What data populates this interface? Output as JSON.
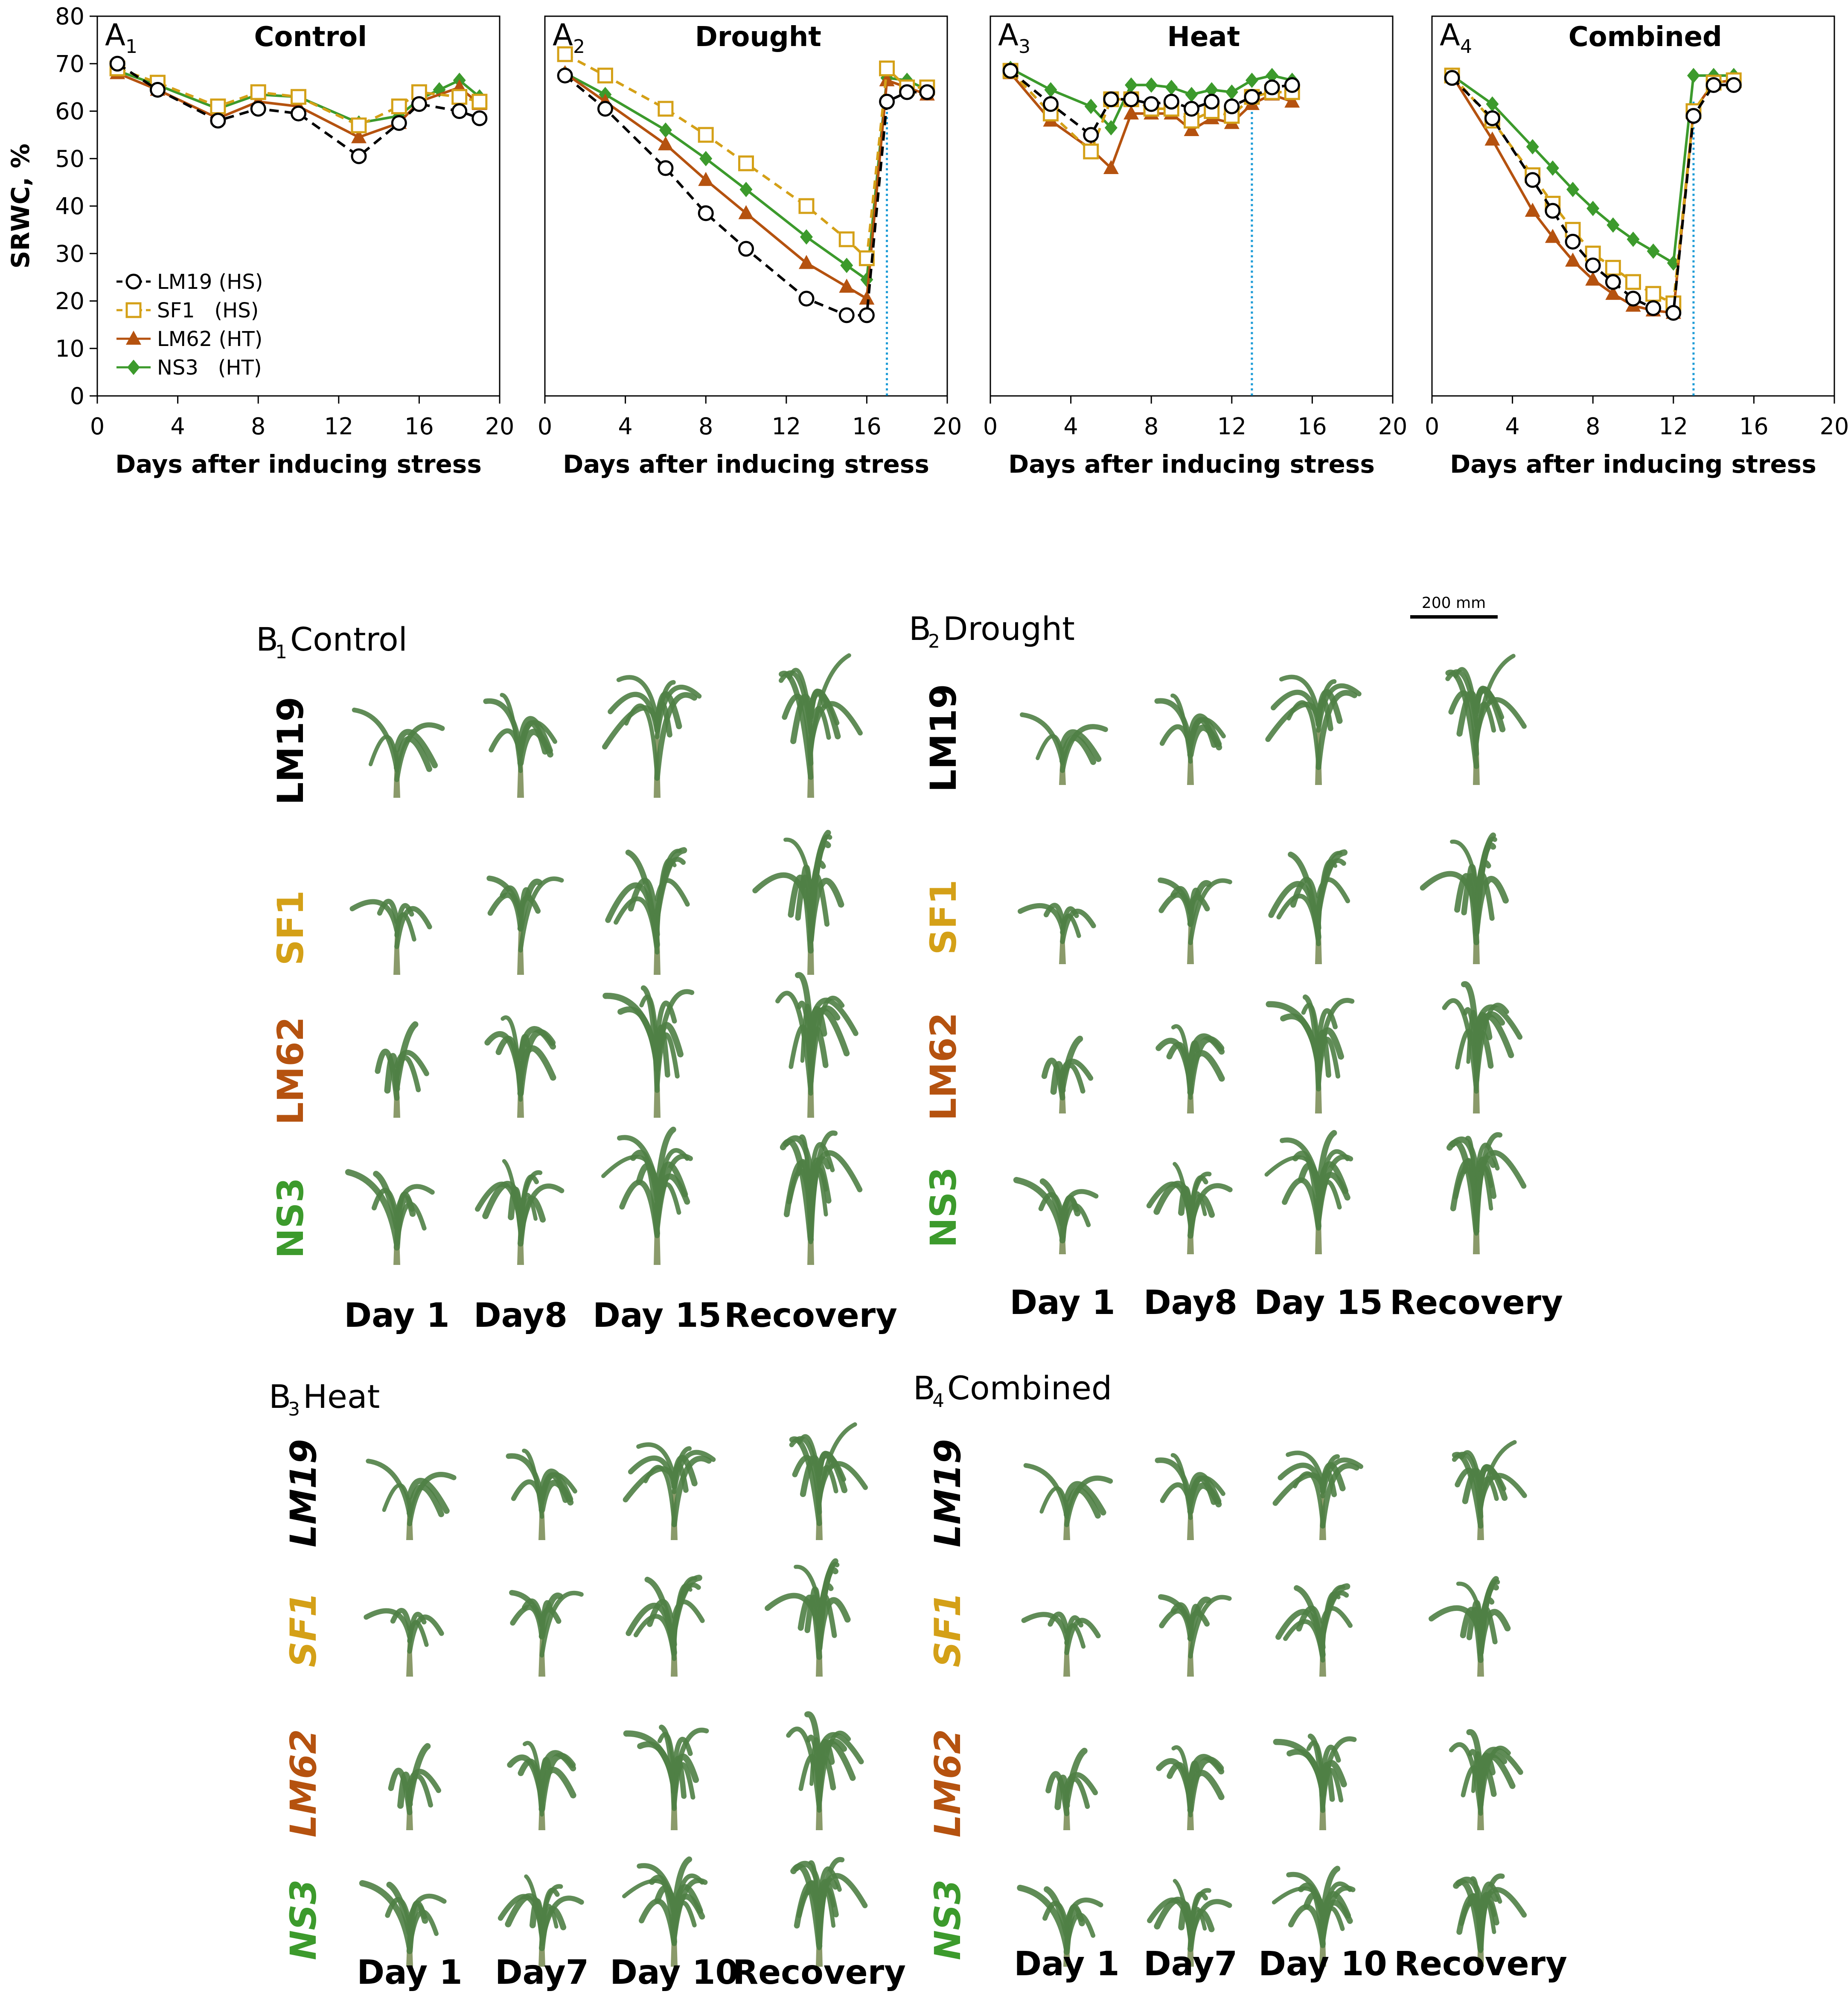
{
  "chart_data": [
    {
      "type": "line",
      "panel": "A",
      "panel_sub": "1",
      "title": "Control",
      "xlabel": "Days after inducing stress",
      "ylabel": "SRWC, %",
      "xlim": [
        0,
        20
      ],
      "ylim": [
        0,
        80
      ],
      "xticks": [
        "0",
        "4",
        "8",
        "12",
        "16",
        "20"
      ],
      "yticks": [
        "0",
        "10",
        "20",
        "30",
        "40",
        "50",
        "60",
        "70",
        "80"
      ],
      "recovery_day": null,
      "series": [
        {
          "name": "LM19 (HS)",
          "x": [
            1,
            3,
            6,
            8,
            10,
            13,
            15,
            16,
            18,
            19
          ],
          "y": [
            70,
            64.5,
            58,
            60.5,
            59.5,
            50.5,
            57.5,
            61.5,
            60,
            58.5
          ]
        },
        {
          "name": "SF1   (HS)",
          "x": [
            1,
            3,
            6,
            8,
            10,
            13,
            15,
            16,
            18,
            19
          ],
          "y": [
            69,
            66,
            61,
            64,
            63,
            57,
            61,
            64,
            63,
            62
          ]
        },
        {
          "name": "LM62 (HT)",
          "x": [
            1,
            3,
            6,
            8,
            10,
            13,
            15,
            16,
            18,
            19
          ],
          "y": [
            68,
            64.5,
            58.5,
            62,
            61,
            54.5,
            57.5,
            62,
            65,
            61.5
          ]
        },
        {
          "name": "NS3   (HT)",
          "x": [
            1,
            3,
            6,
            8,
            10,
            13,
            15,
            16,
            17,
            18,
            19
          ],
          "y": [
            68.5,
            65.5,
            60.5,
            63.5,
            63,
            57.5,
            59,
            62.5,
            64.5,
            66.5,
            63
          ]
        }
      ]
    },
    {
      "type": "line",
      "panel": "A",
      "panel_sub": "2",
      "title": "Drought",
      "xlabel": "Days after inducing stress",
      "ylabel": "",
      "xlim": [
        0,
        20
      ],
      "ylim": [
        0,
        80
      ],
      "xticks": [
        "0",
        "4",
        "8",
        "12",
        "16",
        "20"
      ],
      "yticks": [],
      "recovery_day": 17,
      "series": [
        {
          "name": "LM19 (HS)",
          "x": [
            1,
            3,
            6,
            8,
            10,
            13,
            15,
            16,
            17,
            18,
            19
          ],
          "y": [
            67.5,
            60.5,
            48,
            38.5,
            31,
            20.5,
            17,
            17,
            62,
            64,
            64
          ]
        },
        {
          "name": "SF1   (HS)",
          "x": [
            1,
            3,
            6,
            8,
            10,
            13,
            15,
            16,
            17,
            18,
            19
          ],
          "y": [
            72,
            67.5,
            60.5,
            55,
            49,
            40,
            33,
            29,
            69,
            65,
            65
          ]
        },
        {
          "name": "LM62 (HT)",
          "x": [
            1,
            3,
            6,
            8,
            10,
            13,
            15,
            16,
            17,
            18,
            19
          ],
          "y": [
            68,
            62,
            53,
            45.5,
            38.5,
            28,
            23,
            20.5,
            66.5,
            65,
            63.5
          ]
        },
        {
          "name": "NS3   (HT)",
          "x": [
            1,
            3,
            6,
            8,
            10,
            13,
            15,
            16,
            17,
            18,
            19
          ],
          "y": [
            68,
            63.5,
            56,
            50,
            43.5,
            33.5,
            27.5,
            24.5,
            67,
            66.5,
            64.5
          ]
        }
      ]
    },
    {
      "type": "line",
      "panel": "A",
      "panel_sub": "3",
      "title": "Heat",
      "xlabel": "Days after inducing stress",
      "ylabel": "",
      "xlim": [
        0,
        20
      ],
      "ylim": [
        0,
        80
      ],
      "xticks": [
        "0",
        "4",
        "8",
        "12",
        "16",
        "20"
      ],
      "yticks": [],
      "recovery_day": 13,
      "series": [
        {
          "name": "LM19 (HS)",
          "x": [
            1,
            3,
            5,
            6,
            7,
            8,
            9,
            10,
            11,
            12,
            13,
            14,
            15
          ],
          "y": [
            68.5,
            61.5,
            55,
            62.5,
            62.5,
            61.5,
            62,
            60.5,
            62,
            61,
            63,
            65,
            65.5
          ]
        },
        {
          "name": "SF1   (HS)",
          "x": [
            1,
            3,
            5,
            6,
            7,
            8,
            9,
            10,
            11,
            12,
            13,
            14,
            15
          ],
          "y": [
            68.5,
            59.5,
            51.5,
            62.5,
            62.5,
            60.5,
            60.5,
            58,
            60,
            59,
            63,
            64,
            64
          ]
        },
        {
          "name": "LM62 (HT)",
          "x": [
            1,
            3,
            5,
            6,
            7,
            8,
            9,
            10,
            11,
            12,
            13,
            14,
            15
          ],
          "y": [
            68,
            58,
            52,
            48,
            59.5,
            59.5,
            59.5,
            56,
            58.5,
            57.5,
            61.5,
            63.5,
            62
          ]
        },
        {
          "name": "NS3   (HT)",
          "x": [
            1,
            3,
            5,
            6,
            7,
            8,
            9,
            10,
            11,
            12,
            13,
            14,
            15
          ],
          "y": [
            69,
            64.5,
            61,
            56.5,
            65.5,
            65.5,
            65,
            63.5,
            64.5,
            64,
            66.5,
            67.5,
            66.5
          ]
        }
      ]
    },
    {
      "type": "line",
      "panel": "A",
      "panel_sub": "4",
      "title": "Combined",
      "xlabel": "Days after inducing stress",
      "ylabel": "",
      "xlim": [
        0,
        20
      ],
      "ylim": [
        0,
        80
      ],
      "xticks": [
        "0",
        "4",
        "8",
        "12",
        "16",
        "20"
      ],
      "yticks": [],
      "recovery_day": 13,
      "series": [
        {
          "name": "LM19 (HS)",
          "x": [
            1,
            3,
            5,
            6,
            7,
            8,
            9,
            10,
            11,
            12,
            13,
            14,
            15
          ],
          "y": [
            67,
            58.5,
            45.5,
            39,
            32.5,
            27.5,
            24,
            20.5,
            18.5,
            17.5,
            59,
            65.5,
            65.5
          ]
        },
        {
          "name": "SF1   (HS)",
          "x": [
            1,
            3,
            5,
            6,
            7,
            8,
            9,
            10,
            11,
            12,
            13,
            14,
            15
          ],
          "y": [
            67.5,
            58,
            46.5,
            40.5,
            35,
            30,
            27,
            24,
            21.5,
            19.5,
            60,
            66,
            66.5
          ]
        },
        {
          "name": "LM62 (HT)",
          "x": [
            1,
            3,
            5,
            6,
            7,
            8,
            9,
            10,
            11,
            12,
            13,
            14,
            15
          ],
          "y": [
            67.5,
            54,
            39,
            33.5,
            28.5,
            24.5,
            21.5,
            19,
            18,
            17.5,
            60,
            66,
            66.5
          ]
        },
        {
          "name": "NS3   (HT)",
          "x": [
            1,
            3,
            5,
            6,
            7,
            8,
            9,
            10,
            11,
            12,
            13,
            14,
            15
          ],
          "y": [
            67.5,
            61.5,
            52.5,
            48,
            43.5,
            39.5,
            36,
            33,
            30.5,
            28,
            67.5,
            67.5,
            67.5
          ]
        }
      ]
    }
  ],
  "legend": {
    "items": [
      "LM19 (HS)",
      "SF1   (HS)",
      "LM62 (HT)",
      "NS3   (HT)"
    ]
  },
  "series_colors": [
    "#000000",
    "#d4a017",
    "#b5520f",
    "#3c9a2c"
  ],
  "recovery_line_color": "#1b9bd7",
  "photo_panels": {
    "b1": {
      "letter": "B",
      "sub": "1",
      "title": "Control",
      "days": [
        "Day 1",
        "Day8",
        "Day 15",
        "Recovery"
      ]
    },
    "b2": {
      "letter": "B",
      "sub": "2",
      "title": "Drought",
      "days": [
        "Day 1",
        "Day8",
        "Day 15",
        "Recovery"
      ]
    },
    "b3": {
      "letter": "B",
      "sub": "3",
      "title": "Heat",
      "days": [
        "Day 1",
        "Day7",
        "Day 10",
        "Recovery"
      ]
    },
    "b4": {
      "letter": "B",
      "sub": "4",
      "title": "Combined",
      "days": [
        "Day 1",
        "Day7",
        "Day 10",
        "Recovery"
      ]
    },
    "genotypes": [
      "LM19",
      "SF1",
      "LM62",
      "NS3"
    ],
    "genotype_colors": [
      "#000000",
      "#d4a017",
      "#b5520f",
      "#3c9a2c"
    ],
    "plant_color": "#4f7f45",
    "scale_bar_label": "200 mm"
  }
}
